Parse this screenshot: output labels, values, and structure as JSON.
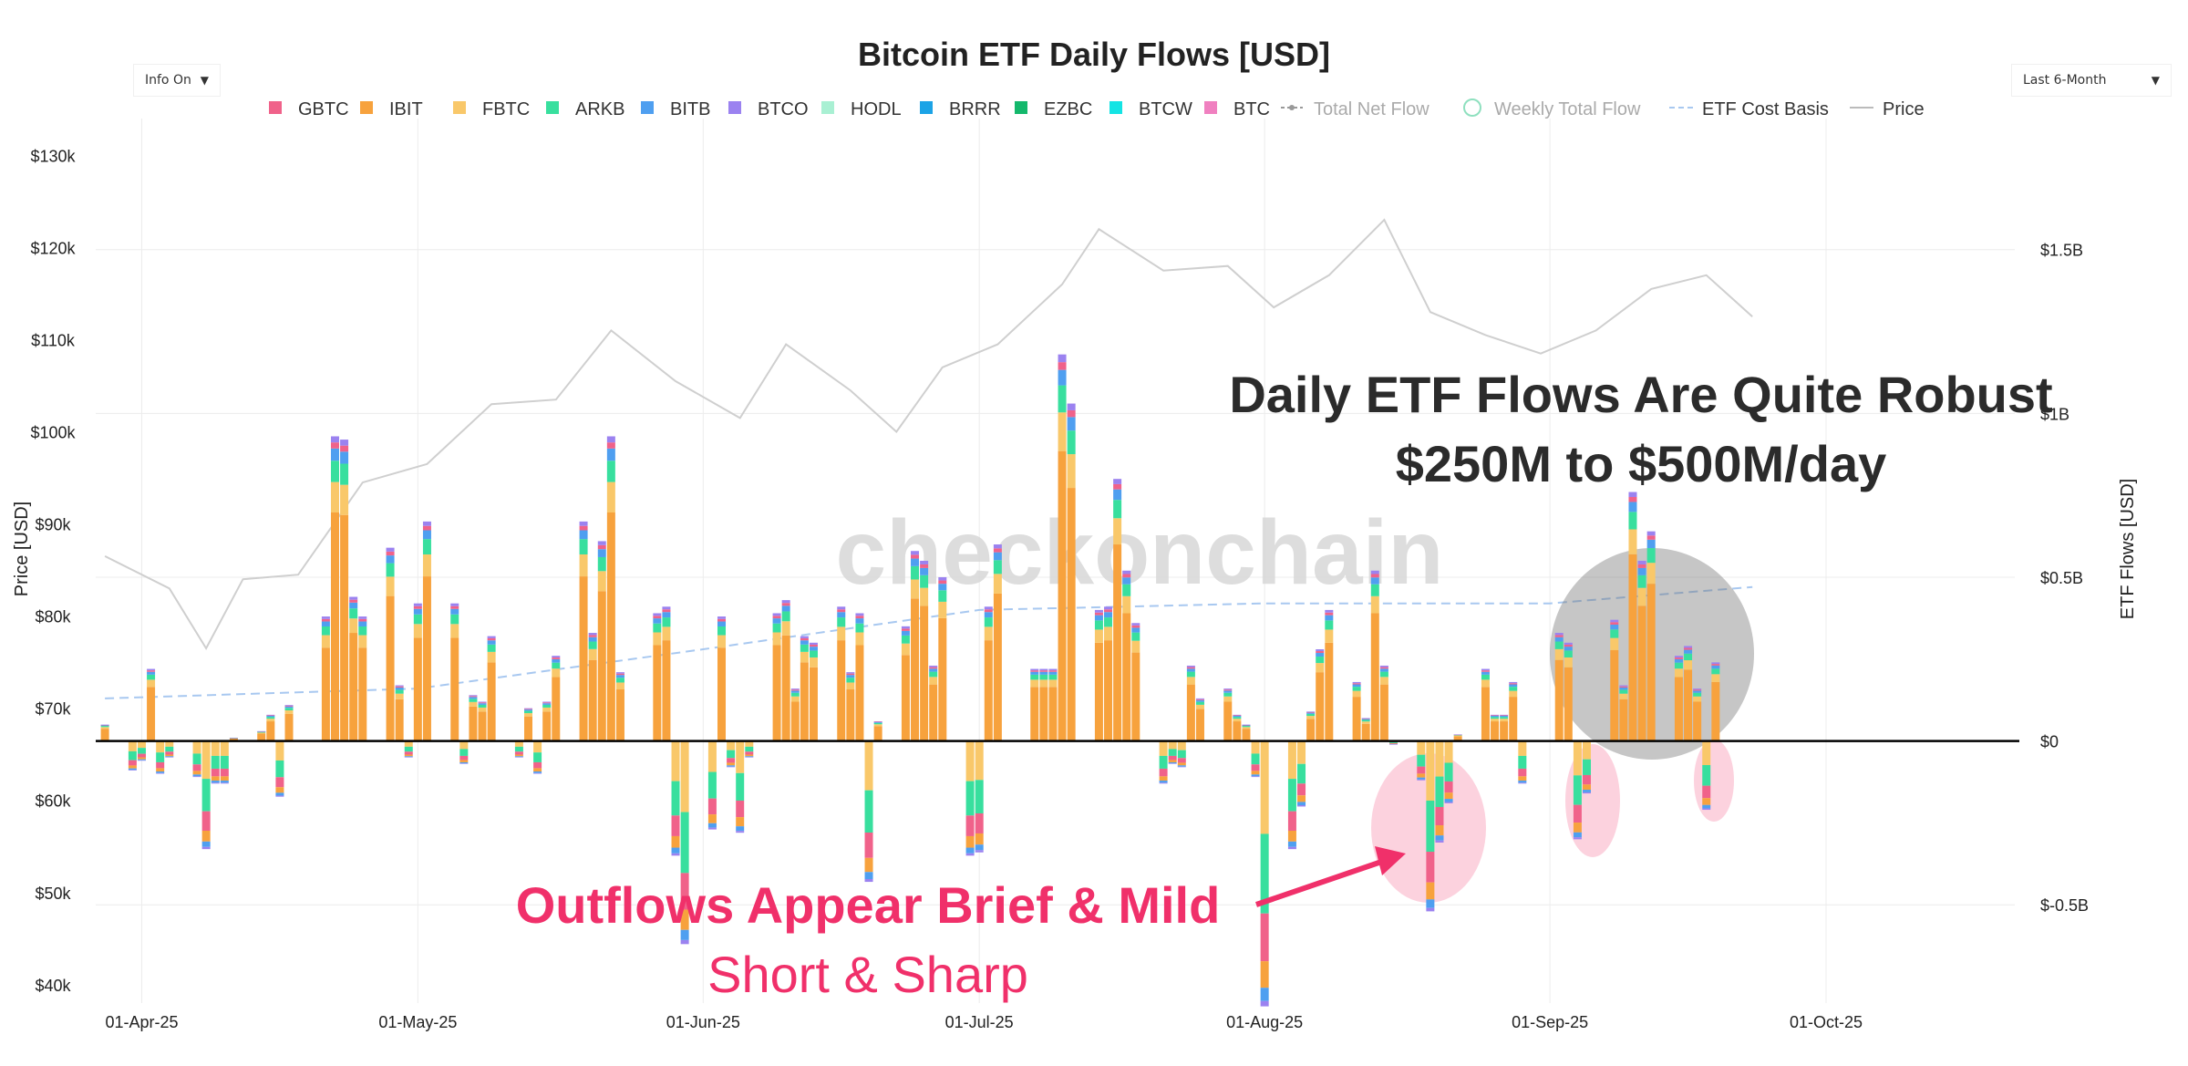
{
  "controls": {
    "left_dropdown": "Info On",
    "right_dropdown": "Last 6-Month"
  },
  "colors": {
    "GBTC": "#f0628a",
    "IBIT": "#f7a23d",
    "FBTC": "#f9c86a",
    "ARKB": "#38df9e",
    "BITB": "#4f9ff0",
    "BTCO": "#9b82f0",
    "HODL": "#a9f0d3",
    "BRRR": "#1ca3e6",
    "EZBC": "#14b86c",
    "BTCW": "#14e4e4",
    "BTC": "#f080c0",
    "price": "#cfcfcf",
    "cost_basis": "#a8c8f0",
    "annotation_pink": "#f0306a",
    "highlight_gray": "#707070"
  },
  "chart_data": {
    "type": "bar",
    "title": "Bitcoin ETF Daily Flows [USD]",
    "ylabel_left": "Price [USD]",
    "ylabel_right": "ETF Flows [USD]",
    "left_axis": {
      "ticks": [
        "$40k",
        "$50k",
        "$60k",
        "$70k",
        "$80k",
        "$90k",
        "$100k",
        "$110k",
        "$120k",
        "$130k"
      ],
      "range": [
        38000,
        134000
      ]
    },
    "right_axis": {
      "ticks": [
        "$-0.5B",
        "$0",
        "$0.5B",
        "$1B",
        "$1.5B"
      ],
      "range": [
        -0.8,
        1.9
      ]
    },
    "x_ticks": [
      "01-Apr-25",
      "01-May-25",
      "01-Jun-25",
      "01-Jul-25",
      "01-Aug-25",
      "01-Sep-25",
      "01-Oct-25"
    ],
    "x_range": [
      "2025-03-27",
      "2025-10-22"
    ],
    "legend": [
      "GBTC",
      "IBIT",
      "FBTC",
      "ARKB",
      "BITB",
      "BTCO",
      "HODL",
      "BRRR",
      "EZBC",
      "BTCW",
      "BTC",
      "Total Net Flow",
      "Weekly Total Flow",
      "ETF Cost Basis",
      "Price"
    ],
    "legend_placement": "top-center",
    "grid": true,
    "watermark": "checkonchain",
    "daily_net_flows_usd_billion": [
      {
        "date": "2025-03-28",
        "net": 0.05
      },
      {
        "date": "2025-03-31",
        "net": -0.09
      },
      {
        "date": "2025-04-01",
        "net": -0.06
      },
      {
        "date": "2025-04-02",
        "net": 0.22
      },
      {
        "date": "2025-04-03",
        "net": -0.1
      },
      {
        "date": "2025-04-04",
        "net": -0.05
      },
      {
        "date": "2025-04-07",
        "net": -0.11
      },
      {
        "date": "2025-04-08",
        "net": -0.33
      },
      {
        "date": "2025-04-09",
        "net": -0.13
      },
      {
        "date": "2025-04-10",
        "net": -0.13
      },
      {
        "date": "2025-04-11",
        "net": 0.01
      },
      {
        "date": "2025-04-14",
        "net": 0.03
      },
      {
        "date": "2025-04-15",
        "net": 0.08
      },
      {
        "date": "2025-04-16",
        "net": -0.17
      },
      {
        "date": "2025-04-17",
        "net": 0.11
      },
      {
        "date": "2025-04-21",
        "net": 0.38
      },
      {
        "date": "2025-04-22",
        "net": 0.93
      },
      {
        "date": "2025-04-23",
        "net": 0.92
      },
      {
        "date": "2025-04-24",
        "net": 0.44
      },
      {
        "date": "2025-04-25",
        "net": 0.38
      },
      {
        "date": "2025-04-28",
        "net": 0.59
      },
      {
        "date": "2025-04-29",
        "net": 0.17
      },
      {
        "date": "2025-04-30",
        "net": -0.05
      },
      {
        "date": "2025-05-01",
        "net": 0.42
      },
      {
        "date": "2025-05-02",
        "net": 0.67
      },
      {
        "date": "2025-05-05",
        "net": 0.42
      },
      {
        "date": "2025-05-06",
        "net": -0.07
      },
      {
        "date": "2025-05-07",
        "net": 0.14
      },
      {
        "date": "2025-05-08",
        "net": 0.12
      },
      {
        "date": "2025-05-09",
        "net": 0.32
      },
      {
        "date": "2025-05-12",
        "net": -0.05
      },
      {
        "date": "2025-05-13",
        "net": 0.1
      },
      {
        "date": "2025-05-14",
        "net": -0.1
      },
      {
        "date": "2025-05-15",
        "net": 0.12
      },
      {
        "date": "2025-05-16",
        "net": 0.26
      },
      {
        "date": "2025-05-19",
        "net": 0.67
      },
      {
        "date": "2025-05-20",
        "net": 0.33
      },
      {
        "date": "2025-05-21",
        "net": 0.61
      },
      {
        "date": "2025-05-22",
        "net": 0.93
      },
      {
        "date": "2025-05-23",
        "net": 0.21
      },
      {
        "date": "2025-05-27",
        "net": 0.39
      },
      {
        "date": "2025-05-28",
        "net": 0.41
      },
      {
        "date": "2025-05-29",
        "net": -0.35
      },
      {
        "date": "2025-05-30",
        "net": -0.62
      },
      {
        "date": "2025-06-02",
        "net": -0.27
      },
      {
        "date": "2025-06-03",
        "net": 0.38
      },
      {
        "date": "2025-06-04",
        "net": -0.08
      },
      {
        "date": "2025-06-05",
        "net": -0.28
      },
      {
        "date": "2025-06-06",
        "net": -0.05
      },
      {
        "date": "2025-06-09",
        "net": 0.39
      },
      {
        "date": "2025-06-10",
        "net": 0.43
      },
      {
        "date": "2025-06-11",
        "net": 0.16
      },
      {
        "date": "2025-06-12",
        "net": 0.32
      },
      {
        "date": "2025-06-13",
        "net": 0.3
      },
      {
        "date": "2025-06-16",
        "net": 0.41
      },
      {
        "date": "2025-06-17",
        "net": 0.21
      },
      {
        "date": "2025-06-18",
        "net": 0.39
      },
      {
        "date": "2025-06-19",
        "net": -0.43
      },
      {
        "date": "2025-06-20",
        "net": 0.06
      },
      {
        "date": "2025-06-23",
        "net": 0.35
      },
      {
        "date": "2025-06-24",
        "net": 0.58
      },
      {
        "date": "2025-06-25",
        "net": 0.55
      },
      {
        "date": "2025-06-26",
        "net": 0.23
      },
      {
        "date": "2025-06-27",
        "net": 0.5
      },
      {
        "date": "2025-06-30",
        "net": -0.35
      },
      {
        "date": "2025-07-01",
        "net": -0.34
      },
      {
        "date": "2025-07-02",
        "net": 0.41
      },
      {
        "date": "2025-07-03",
        "net": 0.6
      },
      {
        "date": "2025-07-07",
        "net": 0.22
      },
      {
        "date": "2025-07-08",
        "net": 0.22
      },
      {
        "date": "2025-07-09",
        "net": 0.22
      },
      {
        "date": "2025-07-10",
        "net": 1.18
      },
      {
        "date": "2025-07-11",
        "net": 1.03
      },
      {
        "date": "2025-07-14",
        "net": 0.4
      },
      {
        "date": "2025-07-15",
        "net": 0.41
      },
      {
        "date": "2025-07-16",
        "net": 0.8
      },
      {
        "date": "2025-07-17",
        "net": 0.52
      },
      {
        "date": "2025-07-18",
        "net": 0.36
      },
      {
        "date": "2025-07-21",
        "net": -0.13
      },
      {
        "date": "2025-07-22",
        "net": -0.07
      },
      {
        "date": "2025-07-23",
        "net": -0.08
      },
      {
        "date": "2025-07-24",
        "net": 0.23
      },
      {
        "date": "2025-07-25",
        "net": 0.13
      },
      {
        "date": "2025-07-28",
        "net": 0.16
      },
      {
        "date": "2025-07-29",
        "net": 0.08
      },
      {
        "date": "2025-07-30",
        "net": 0.05
      },
      {
        "date": "2025-07-31",
        "net": -0.11
      },
      {
        "date": "2025-08-01",
        "net": -0.81
      },
      {
        "date": "2025-08-04",
        "net": -0.33
      },
      {
        "date": "2025-08-05",
        "net": -0.2
      },
      {
        "date": "2025-08-06",
        "net": 0.09
      },
      {
        "date": "2025-08-07",
        "net": 0.28
      },
      {
        "date": "2025-08-08",
        "net": 0.4
      },
      {
        "date": "2025-08-11",
        "net": 0.18
      },
      {
        "date": "2025-08-12",
        "net": 0.07
      },
      {
        "date": "2025-08-13",
        "net": 0.52
      },
      {
        "date": "2025-08-14",
        "net": 0.23
      },
      {
        "date": "2025-08-15",
        "net": -0.01
      },
      {
        "date": "2025-08-18",
        "net": -0.12
      },
      {
        "date": "2025-08-19",
        "net": -0.52
      },
      {
        "date": "2025-08-20",
        "net": -0.31
      },
      {
        "date": "2025-08-21",
        "net": -0.19
      },
      {
        "date": "2025-08-22",
        "net": 0.02
      },
      {
        "date": "2025-08-25",
        "net": 0.22
      },
      {
        "date": "2025-08-26",
        "net": 0.08
      },
      {
        "date": "2025-08-27",
        "net": 0.08
      },
      {
        "date": "2025-08-28",
        "net": 0.18
      },
      {
        "date": "2025-08-29",
        "net": -0.13
      },
      {
        "date": "2025-09-02",
        "net": 0.33
      },
      {
        "date": "2025-09-03",
        "net": 0.3
      },
      {
        "date": "2025-09-04",
        "net": -0.3
      },
      {
        "date": "2025-09-05",
        "net": -0.16
      },
      {
        "date": "2025-09-08",
        "net": 0.37
      },
      {
        "date": "2025-09-09",
        "net": 0.17
      },
      {
        "date": "2025-09-10",
        "net": 0.76
      },
      {
        "date": "2025-09-11",
        "net": 0.55
      },
      {
        "date": "2025-09-12",
        "net": 0.64
      },
      {
        "date": "2025-09-15",
        "net": 0.26
      },
      {
        "date": "2025-09-16",
        "net": 0.29
      },
      {
        "date": "2025-09-17",
        "net": 0.16
      },
      {
        "date": "2025-09-18",
        "net": -0.21
      },
      {
        "date": "2025-09-19",
        "net": 0.24
      }
    ],
    "price_usd_weekly": [
      {
        "date": "2025-03-28",
        "price": 86500
      },
      {
        "date": "2025-04-04",
        "price": 83000
      },
      {
        "date": "2025-04-08",
        "price": 76500
      },
      {
        "date": "2025-04-12",
        "price": 84000
      },
      {
        "date": "2025-04-18",
        "price": 84500
      },
      {
        "date": "2025-04-25",
        "price": 94500
      },
      {
        "date": "2025-05-02",
        "price": 96500
      },
      {
        "date": "2025-05-09",
        "price": 103000
      },
      {
        "date": "2025-05-16",
        "price": 103500
      },
      {
        "date": "2025-05-22",
        "price": 111000
      },
      {
        "date": "2025-05-29",
        "price": 105500
      },
      {
        "date": "2025-06-05",
        "price": 101500
      },
      {
        "date": "2025-06-10",
        "price": 109500
      },
      {
        "date": "2025-06-17",
        "price": 104500
      },
      {
        "date": "2025-06-22",
        "price": 100000
      },
      {
        "date": "2025-06-27",
        "price": 107000
      },
      {
        "date": "2025-07-03",
        "price": 109500
      },
      {
        "date": "2025-07-10",
        "price": 116000
      },
      {
        "date": "2025-07-14",
        "price": 122000
      },
      {
        "date": "2025-07-21",
        "price": 117500
      },
      {
        "date": "2025-07-28",
        "price": 118000
      },
      {
        "date": "2025-08-02",
        "price": 113500
      },
      {
        "date": "2025-08-08",
        "price": 117000
      },
      {
        "date": "2025-08-14",
        "price": 123000
      },
      {
        "date": "2025-08-19",
        "price": 113000
      },
      {
        "date": "2025-08-25",
        "price": 110500
      },
      {
        "date": "2025-08-31",
        "price": 108500
      },
      {
        "date": "2025-09-06",
        "price": 111000
      },
      {
        "date": "2025-09-12",
        "price": 115500
      },
      {
        "date": "2025-09-18",
        "price": 117000
      },
      {
        "date": "2025-09-23",
        "price": 112500
      }
    ],
    "etf_cost_basis_usd": [
      {
        "date": "2025-03-28",
        "value": 0.13
      },
      {
        "date": "2025-05-01",
        "value": 0.16
      },
      {
        "date": "2025-06-01",
        "value": 0.28
      },
      {
        "date": "2025-07-01",
        "value": 0.4
      },
      {
        "date": "2025-08-01",
        "value": 0.42
      },
      {
        "date": "2025-09-01",
        "value": 0.42
      },
      {
        "date": "2025-09-23",
        "value": 0.47
      }
    ],
    "annotations": [
      {
        "text": "Daily ETF Flows Are Quite Robust",
        "subtext": "$250M to $500M/day"
      },
      {
        "text": "Outflows Appear Brief & Mild",
        "subtext": "Short & Sharp"
      }
    ]
  }
}
